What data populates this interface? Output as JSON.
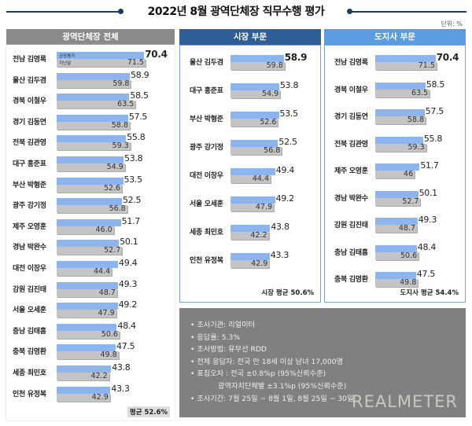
{
  "header": {
    "title": "2022년 8월 광역단체장 직무수행 평가",
    "unit": "단위: %"
  },
  "colors": {
    "current": "#8db4ec",
    "previous": "#c4c4c4",
    "head_all": "#8a8a8a",
    "head_mayor": "#2f5e96",
    "head_governor": "#5b9be0"
  },
  "chart_data": [
    {
      "type": "bar",
      "title": "광역단체장 전체",
      "categories": [
        "전남 김영록",
        "울산 김두겸",
        "경북 이철우",
        "경기 김동연",
        "전북 김관영",
        "대구 홍준표",
        "부산 박형준",
        "광주 강기정",
        "제주 오영훈",
        "경남 박완수",
        "대전 이장우",
        "강원 김진태",
        "서울 오세훈",
        "충남 김태흠",
        "충북 김영환",
        "세종 최민호",
        "인천 유정복"
      ],
      "series": [
        {
          "name": "긍정평가",
          "values": [
            "70.4",
            "58.9",
            "58.5",
            "57.5",
            "55.8",
            "53.8",
            "53.5",
            "52.5",
            "51.7",
            "50.1",
            "49.4",
            "49.3",
            "49.2",
            "48.4",
            "47.5",
            "43.8",
            "43.3"
          ]
        },
        {
          "name": "지난달",
          "values": [
            "71.5",
            "59.8",
            "63.5",
            "58.8",
            "59.3",
            "54.9",
            "52.6",
            "56.8",
            "46.0",
            "52.7",
            "44.4",
            "48.7",
            "47.9",
            "50.6",
            "49.8",
            "42.2",
            "42.9"
          ]
        }
      ],
      "average": "평균 52.6%"
    },
    {
      "type": "bar",
      "title": "시장 부문",
      "categories": [
        "울산 김두겸",
        "대구 홍준표",
        "부산 박형준",
        "광주 강기정",
        "대전 이장우",
        "서울 오세훈",
        "세종 최민호",
        "인천 유정복"
      ],
      "series": [
        {
          "values": [
            "58.9",
            "53.8",
            "53.5",
            "52.5",
            "49.4",
            "49.2",
            "43.8",
            "43.3"
          ]
        },
        {
          "values": [
            "59.8",
            "54.9",
            "52.6",
            "56.8",
            "44.4",
            "47.9",
            "42.2",
            "42.9"
          ]
        }
      ],
      "average": "시장 평균 50.6%"
    },
    {
      "type": "bar",
      "title": "도지사 부문",
      "categories": [
        "전남 김영록",
        "경북 이철우",
        "경기 김동연",
        "전북 김관영",
        "제주 오영훈",
        "경남 박완수",
        "강원 김진태",
        "충남 김태흠",
        "충북 김영환"
      ],
      "series": [
        {
          "values": [
            "70.4",
            "58.5",
            "57.5",
            "55.8",
            "51.7",
            "50.1",
            "49.3",
            "48.4",
            "47.5"
          ]
        },
        {
          "values": [
            "71.5",
            "63.5",
            "58.8",
            "59.3",
            "46",
            "52.7",
            "48.7",
            "50.6",
            "49.8"
          ]
        }
      ],
      "average": "도지사 평균 54.4%"
    }
  ],
  "notes": [
    "• 조사기관: 리얼미터",
    "• 응답률: 5.3%",
    "• 조사방법: 유무선 RDD",
    "• 전체 응답자: 전국 만 18세 이상 남녀 17,000명",
    "• 표집오차 : 전국 ±0.8%p (95%신뢰수준)",
    "            광역자치단체별 ±3.1%p (95%신뢰수준)",
    "• 조사기간: 7월 25일 ~ 8월 1일, 8월 25일 ~ 30일"
  ],
  "logo": "REALMETER"
}
